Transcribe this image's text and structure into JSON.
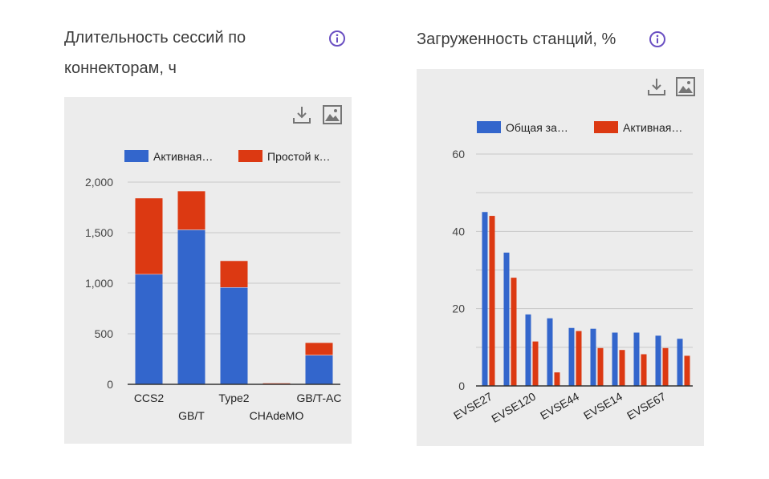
{
  "panels": [
    {
      "title_line1": "Длительность сессий по",
      "title_line2": "коннекторам, ч",
      "info_icon": "info-icon",
      "download_icon": "download-icon",
      "image_icon": "image-icon"
    },
    {
      "title_line1": "Загруженность станций, %",
      "info_icon": "info-icon",
      "download_icon": "download-icon",
      "image_icon": "image-icon"
    }
  ],
  "colors": {
    "blue": "#3366cc",
    "red": "#dc3912",
    "accent": "#6a4fc2"
  },
  "chart_data": [
    {
      "type": "bar",
      "stacked": true,
      "categories": [
        "CCS2",
        "GB/T",
        "Type2",
        "CHAdeMO",
        "GB/T-AC"
      ],
      "series": [
        {
          "name": "Активная…",
          "values": [
            1090,
            1530,
            960,
            0,
            290
          ]
        },
        {
          "name": "Простой к…",
          "values": [
            750,
            380,
            260,
            10,
            120
          ]
        }
      ],
      "yticks": [
        "0",
        "500",
        "1,000",
        "1,500",
        "2,000"
      ],
      "ylim": [
        0,
        2000
      ],
      "grid": true,
      "legend": "top"
    },
    {
      "type": "bar",
      "categories": [
        "EVSE27",
        "",
        "EVSE120",
        "",
        "EVSE44",
        "",
        "EVSE14",
        "",
        "EVSE67",
        ""
      ],
      "series": [
        {
          "name": "Общая за…",
          "values": [
            45,
            34.5,
            18.5,
            17.5,
            15,
            14.8,
            13.8,
            13.8,
            13,
            12.2
          ]
        },
        {
          "name": "Активная…",
          "values": [
            44,
            28,
            11.5,
            3.5,
            14.2,
            9.8,
            9.3,
            8.2,
            9.8,
            7.8
          ]
        }
      ],
      "yticks": [
        "0",
        "20",
        "40",
        "60"
      ],
      "ylim": [
        0,
        60
      ],
      "grid": true,
      "legend": "top"
    }
  ]
}
